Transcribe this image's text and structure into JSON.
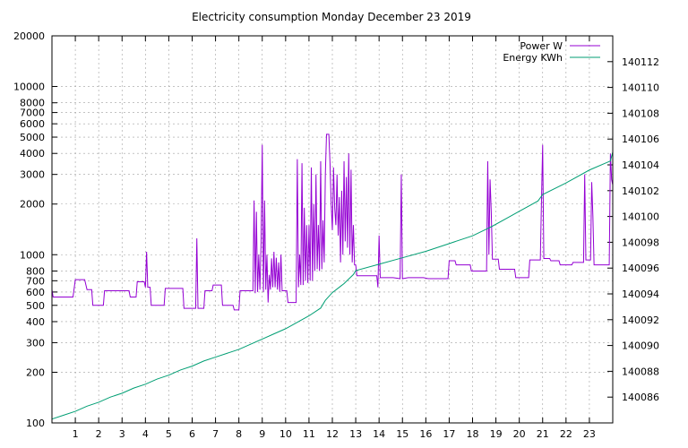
{
  "chart_data": {
    "type": "line",
    "title": "Electricity consumption Monday December 23 2019",
    "x_axis": {
      "range": [
        0,
        24
      ],
      "ticks": [
        "1",
        "2",
        "3",
        "4",
        "5",
        "6",
        "7",
        "8",
        "9",
        "10",
        "11",
        "12",
        "13",
        "14",
        "15",
        "16",
        "17",
        "18",
        "19",
        "20",
        "21",
        "22",
        "23"
      ],
      "grid": true
    },
    "y_left": {
      "scale": "log",
      "range": [
        100,
        20000
      ],
      "ticks": [
        "100",
        "200",
        "300",
        "400",
        "500",
        "600",
        "700",
        "800",
        "1000",
        "2000",
        "3000",
        "4000",
        "5000",
        "6000",
        "7000",
        "8000",
        "10000",
        "20000"
      ]
    },
    "y_right": {
      "range": [
        140084,
        140114
      ],
      "ticks": [
        "140086",
        "140088",
        "140090",
        "140092",
        "140094",
        "140096",
        "140098",
        "140100",
        "140102",
        "140104",
        "140106",
        "140108",
        "140110",
        "140112"
      ]
    },
    "legend": {
      "placement": "top-right"
    },
    "series": [
      {
        "name": "Power W",
        "axis": "left",
        "color": "#9400d3",
        "points": [
          [
            0.0,
            620
          ],
          [
            0.05,
            560
          ],
          [
            0.9,
            560
          ],
          [
            1.0,
            710
          ],
          [
            1.4,
            710
          ],
          [
            1.5,
            620
          ],
          [
            1.7,
            620
          ],
          [
            1.75,
            500
          ],
          [
            2.2,
            500
          ],
          [
            2.25,
            610
          ],
          [
            3.3,
            610
          ],
          [
            3.35,
            560
          ],
          [
            3.6,
            560
          ],
          [
            3.65,
            690
          ],
          [
            3.95,
            690
          ],
          [
            4.0,
            640
          ],
          [
            4.05,
            1040
          ],
          [
            4.1,
            640
          ],
          [
            4.2,
            640
          ],
          [
            4.25,
            500
          ],
          [
            4.8,
            500
          ],
          [
            4.85,
            630
          ],
          [
            5.6,
            630
          ],
          [
            5.65,
            480
          ],
          [
            6.15,
            480
          ],
          [
            6.2,
            1250
          ],
          [
            6.25,
            480
          ],
          [
            6.5,
            480
          ],
          [
            6.55,
            610
          ],
          [
            6.85,
            610
          ],
          [
            6.9,
            660
          ],
          [
            7.25,
            660
          ],
          [
            7.3,
            500
          ],
          [
            7.75,
            500
          ],
          [
            7.8,
            470
          ],
          [
            8.0,
            470
          ],
          [
            8.05,
            610
          ],
          [
            8.6,
            610
          ],
          [
            8.65,
            2100
          ],
          [
            8.7,
            590
          ],
          [
            8.75,
            1800
          ],
          [
            8.8,
            600
          ],
          [
            8.85,
            1000
          ],
          [
            8.9,
            620
          ],
          [
            8.95,
            1200
          ],
          [
            9.0,
            4500
          ],
          [
            9.05,
            600
          ],
          [
            9.1,
            2100
          ],
          [
            9.15,
            620
          ],
          [
            9.2,
            1000
          ],
          [
            9.25,
            520
          ],
          [
            9.3,
            760
          ],
          [
            9.35,
            620
          ],
          [
            9.4,
            950
          ],
          [
            9.45,
            640
          ],
          [
            9.5,
            1040
          ],
          [
            9.55,
            640
          ],
          [
            9.6,
            960
          ],
          [
            9.65,
            620
          ],
          [
            9.7,
            900
          ],
          [
            9.75,
            600
          ],
          [
            9.8,
            1000
          ],
          [
            9.85,
            610
          ],
          [
            9.9,
            610
          ],
          [
            10.05,
            610
          ],
          [
            10.1,
            520
          ],
          [
            10.45,
            520
          ],
          [
            10.5,
            3700
          ],
          [
            10.55,
            640
          ],
          [
            10.6,
            1000
          ],
          [
            10.65,
            660
          ],
          [
            10.7,
            3500
          ],
          [
            10.75,
            660
          ],
          [
            10.8,
            1900
          ],
          [
            10.85,
            700
          ],
          [
            10.9,
            1500
          ],
          [
            10.95,
            680
          ],
          [
            11.0,
            1500
          ],
          [
            11.05,
            700
          ],
          [
            11.1,
            3300
          ],
          [
            11.15,
            700
          ],
          [
            11.2,
            2000
          ],
          [
            11.25,
            800
          ],
          [
            11.3,
            3000
          ],
          [
            11.35,
            820
          ],
          [
            11.4,
            1500
          ],
          [
            11.45,
            800
          ],
          [
            11.5,
            3600
          ],
          [
            11.55,
            820
          ],
          [
            11.6,
            1600
          ],
          [
            11.65,
            900
          ],
          [
            11.7,
            3000
          ],
          [
            11.75,
            5200
          ],
          [
            11.85,
            5200
          ],
          [
            11.9,
            3500
          ],
          [
            11.95,
            2000
          ],
          [
            12.0,
            1400
          ],
          [
            12.05,
            3300
          ],
          [
            12.1,
            1900
          ],
          [
            12.15,
            1500
          ],
          [
            12.2,
            3000
          ],
          [
            12.25,
            1300
          ],
          [
            12.3,
            2200
          ],
          [
            12.35,
            900
          ],
          [
            12.4,
            2400
          ],
          [
            12.45,
            1000
          ],
          [
            12.5,
            3600
          ],
          [
            12.55,
            1200
          ],
          [
            12.6,
            2900
          ],
          [
            12.65,
            1100
          ],
          [
            12.7,
            4000
          ],
          [
            12.75,
            1000
          ],
          [
            12.8,
            3200
          ],
          [
            12.85,
            900
          ],
          [
            12.9,
            1500
          ],
          [
            12.95,
            870
          ],
          [
            13.0,
            870
          ],
          [
            13.05,
            750
          ],
          [
            13.3,
            750
          ],
          [
            13.9,
            750
          ],
          [
            13.95,
            640
          ],
          [
            14.0,
            1300
          ],
          [
            14.05,
            730
          ],
          [
            14.6,
            730
          ],
          [
            14.9,
            720
          ],
          [
            14.95,
            3000
          ],
          [
            15.0,
            720
          ],
          [
            15.25,
            730
          ],
          [
            15.9,
            730
          ],
          [
            16.1,
            720
          ],
          [
            16.95,
            720
          ],
          [
            17.0,
            920
          ],
          [
            17.25,
            920
          ],
          [
            17.3,
            870
          ],
          [
            17.9,
            870
          ],
          [
            17.95,
            800
          ],
          [
            18.6,
            800
          ],
          [
            18.65,
            3600
          ],
          [
            18.7,
            1000
          ],
          [
            18.75,
            2800
          ],
          [
            18.8,
            1800
          ],
          [
            18.85,
            940
          ],
          [
            19.1,
            940
          ],
          [
            19.15,
            820
          ],
          [
            19.8,
            820
          ],
          [
            19.85,
            730
          ],
          [
            20.4,
            730
          ],
          [
            20.45,
            930
          ],
          [
            20.9,
            930
          ],
          [
            20.95,
            2100
          ],
          [
            21.0,
            4500
          ],
          [
            21.05,
            950
          ],
          [
            21.3,
            950
          ],
          [
            21.35,
            920
          ],
          [
            21.7,
            920
          ],
          [
            21.75,
            870
          ],
          [
            22.25,
            870
          ],
          [
            22.3,
            900
          ],
          [
            22.75,
            900
          ],
          [
            22.8,
            3000
          ],
          [
            22.85,
            930
          ],
          [
            23.05,
            930
          ],
          [
            23.1,
            2700
          ],
          [
            23.15,
            1700
          ],
          [
            23.2,
            870
          ],
          [
            23.85,
            870
          ],
          [
            23.9,
            4000
          ],
          [
            23.95,
            2800
          ],
          [
            24.0,
            2600
          ]
        ]
      },
      {
        "name": "Energy KWh",
        "axis": "right",
        "color": "#009e73",
        "points": [
          [
            0.0,
            140084.3
          ],
          [
            0.5,
            140084.6
          ],
          [
            1.0,
            140084.9
          ],
          [
            1.5,
            140085.3
          ],
          [
            2.0,
            140085.6
          ],
          [
            2.5,
            140086.0
          ],
          [
            3.0,
            140086.3
          ],
          [
            3.5,
            140086.7
          ],
          [
            4.0,
            140087.0
          ],
          [
            4.5,
            140087.4
          ],
          [
            5.0,
            140087.7
          ],
          [
            5.5,
            140088.1
          ],
          [
            6.0,
            140088.4
          ],
          [
            6.5,
            140088.8
          ],
          [
            7.0,
            140089.1
          ],
          [
            7.5,
            140089.4
          ],
          [
            8.0,
            140089.7
          ],
          [
            8.5,
            140090.1
          ],
          [
            9.0,
            140090.5
          ],
          [
            9.5,
            140090.9
          ],
          [
            10.0,
            140091.3
          ],
          [
            10.5,
            140091.8
          ],
          [
            11.0,
            140092.3
          ],
          [
            11.5,
            140092.9
          ],
          [
            11.7,
            140093.5
          ],
          [
            12.0,
            140094.1
          ],
          [
            12.5,
            140094.8
          ],
          [
            12.9,
            140095.5
          ],
          [
            13.0,
            140095.8
          ],
          [
            14.0,
            140096.3
          ],
          [
            15.0,
            140096.8
          ],
          [
            16.0,
            140097.3
          ],
          [
            17.0,
            140097.9
          ],
          [
            18.0,
            140098.5
          ],
          [
            18.8,
            140099.2
          ],
          [
            19.5,
            140099.9
          ],
          [
            20.0,
            140100.4
          ],
          [
            20.8,
            140101.2
          ],
          [
            21.0,
            140101.7
          ],
          [
            22.0,
            140102.6
          ],
          [
            23.0,
            140103.6
          ],
          [
            23.9,
            140104.3
          ],
          [
            24.0,
            140105.0
          ]
        ]
      }
    ]
  }
}
